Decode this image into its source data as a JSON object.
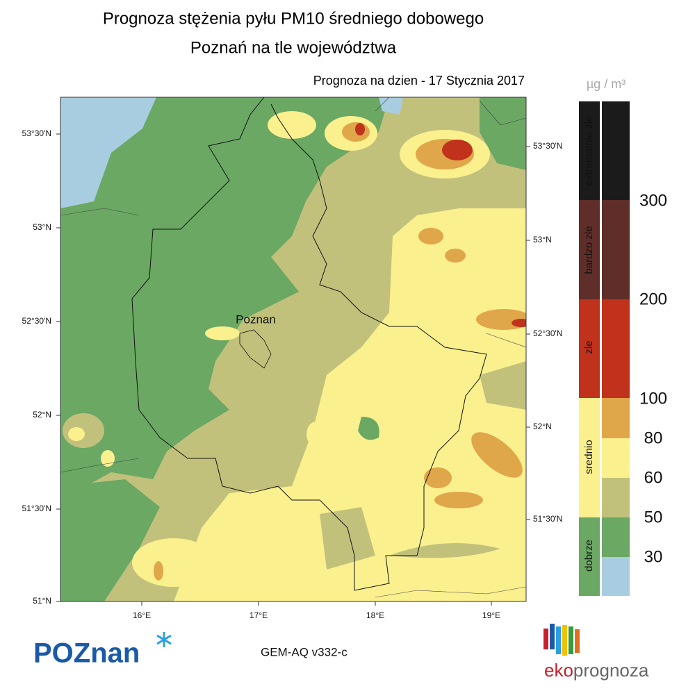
{
  "header": {
    "title": "Prognoza stężenia pyłu PM10 średniego dobowego",
    "subtitle": "Poznań na tle województwa",
    "date": "Prognoza na dzien -  17 Stycznia 2017"
  },
  "map": {
    "lat_labels_left": [
      "53°30'N",
      "53°N",
      "52°30'N",
      "52°N",
      "51°30'N",
      "51°N"
    ],
    "lat_labels_right": [
      "53°30'N",
      "53°N",
      "52°30'N",
      "52°N",
      "51°30'N"
    ],
    "lon_labels": [
      "16°E",
      "17°E",
      "18°E",
      "19°E"
    ],
    "city": "Poznan"
  },
  "legend": {
    "unit": "µg / m³",
    "classes": [
      "extremalnie zle",
      "bardzo zle",
      "zle",
      "srednio",
      "dobrze"
    ],
    "thresholds": [
      300,
      200,
      100,
      80,
      60,
      50,
      30
    ]
  },
  "footer": {
    "logo": "POZnan",
    "model": "GEM-AQ v332-c",
    "brand_eko": "eko",
    "brand_rest": "prognoza"
  }
}
